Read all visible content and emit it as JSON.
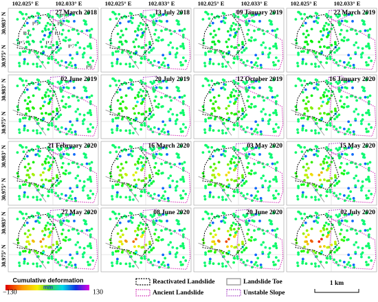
{
  "longitude_labels": [
    "102.025° E",
    "102.033° E"
  ],
  "latitude_labels": [
    "30.983° N",
    "30.975° N"
  ],
  "panels": [
    {
      "date": "27 March 2018"
    },
    {
      "date": "13 July 2018"
    },
    {
      "date": "09 January 2019"
    },
    {
      "date": "22 March 2019"
    },
    {
      "date": "02 June 2019"
    },
    {
      "date": "20 July 2019"
    },
    {
      "date": "12 October 2019"
    },
    {
      "date": "16 January 2020"
    },
    {
      "date": "21 February 2020"
    },
    {
      "date": "16 March 2020"
    },
    {
      "date": "03 May 2020"
    },
    {
      "date": "15 May 2020"
    },
    {
      "date": "27 May 2020"
    },
    {
      "date": "08 June 2020"
    },
    {
      "date": "20 June 2020"
    },
    {
      "date": "02 July 2020"
    }
  ],
  "zone_labels": [
    "P1",
    "P2",
    "P3",
    "P4",
    "P5",
    "P6",
    "P7",
    "P8",
    "P9"
  ],
  "colorbar": {
    "title": "Cumulative deformation",
    "unit": "mm",
    "min_label": "−130",
    "max_label": "130"
  },
  "legend": [
    {
      "label": "Reactivated Landslide"
    },
    {
      "label": "Landslide Toe"
    },
    {
      "label": "Ancient Landslide"
    },
    {
      "label": "Unstable Slope"
    }
  ],
  "scale_bar": "1 km"
}
